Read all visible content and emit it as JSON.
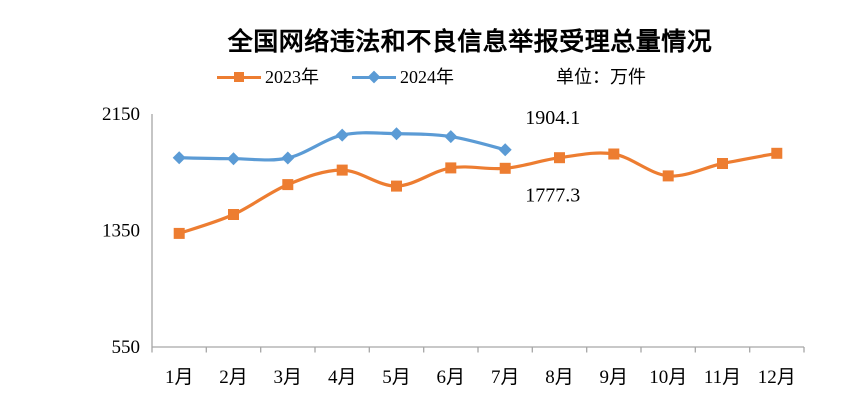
{
  "title": "全国网络违法和不良信息举报受理总量情况",
  "unit_label": "单位：万件",
  "legend": [
    {
      "label": "2023年",
      "color": "#ED7D31",
      "marker": "square"
    },
    {
      "label": "2024年",
      "color": "#5B9BD5",
      "marker": "diamond"
    }
  ],
  "colors": {
    "axis": "#A6A6A6",
    "text": "#000000",
    "background": "#FFFFFF",
    "series_2023": "#ED7D31",
    "series_2024": "#5B9BD5"
  },
  "chart_data": {
    "type": "line",
    "title": "全国网络违法和不良信息举报受理总量情况",
    "unit": "万件",
    "categories": [
      "1月",
      "2月",
      "3月",
      "4月",
      "5月",
      "6月",
      "7月",
      "8月",
      "9月",
      "10月",
      "11月",
      "12月"
    ],
    "series": [
      {
        "name": "2023年",
        "color": "#ED7D31",
        "marker": "square",
        "values": [
          1330,
          1460,
          1665,
          1765,
          1655,
          1780,
          1777.3,
          1850,
          1875,
          1725,
          1810,
          1880
        ]
      },
      {
        "name": "2024年",
        "color": "#5B9BD5",
        "marker": "diamond",
        "values": [
          1850,
          1843,
          1848,
          2005,
          2015,
          1995,
          1904.1
        ]
      }
    ],
    "annotations": [
      {
        "text": "1904.1",
        "series": "2024年",
        "month_index": 6,
        "position": "above"
      },
      {
        "text": "1777.3",
        "series": "2023年",
        "month_index": 6,
        "position": "below"
      }
    ],
    "yticks": [
      2150,
      1350,
      550
    ],
    "ylim": [
      550,
      2150
    ],
    "grid": false,
    "smooth_lines": true,
    "legend_position": "top"
  }
}
